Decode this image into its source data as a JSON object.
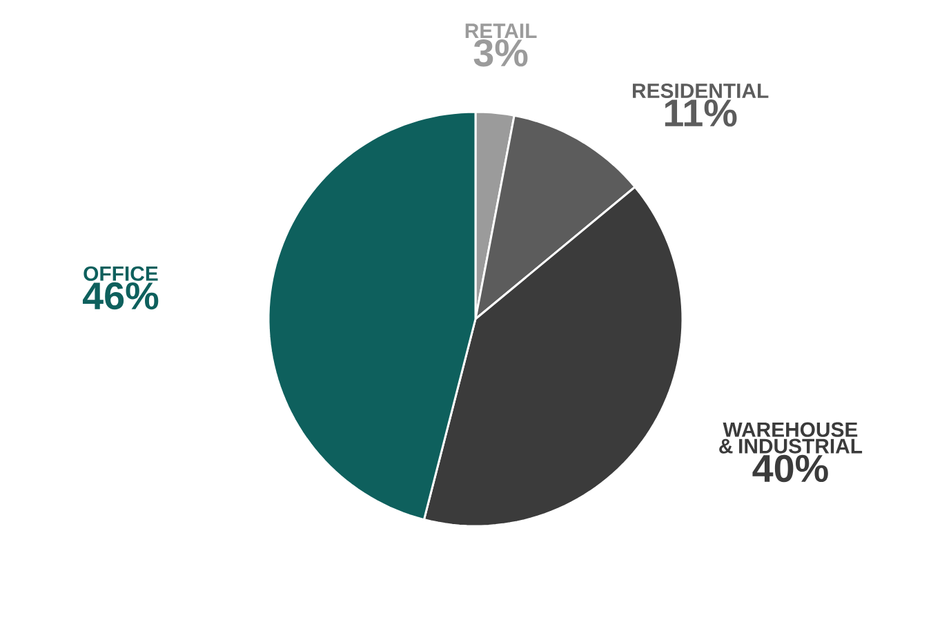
{
  "chart_data": {
    "type": "pie",
    "categories": [
      "RETAIL",
      "RESIDENTIAL",
      "WAREHOUSE & INDUSTRIAL",
      "OFFICE"
    ],
    "values": [
      3,
      11,
      40,
      46
    ],
    "value_labels": [
      "3%",
      "11%",
      "40%",
      "46%"
    ],
    "colors": [
      "#9b9b9b",
      "#5c5c5c",
      "#3b3b3b",
      "#0e605d"
    ]
  }
}
